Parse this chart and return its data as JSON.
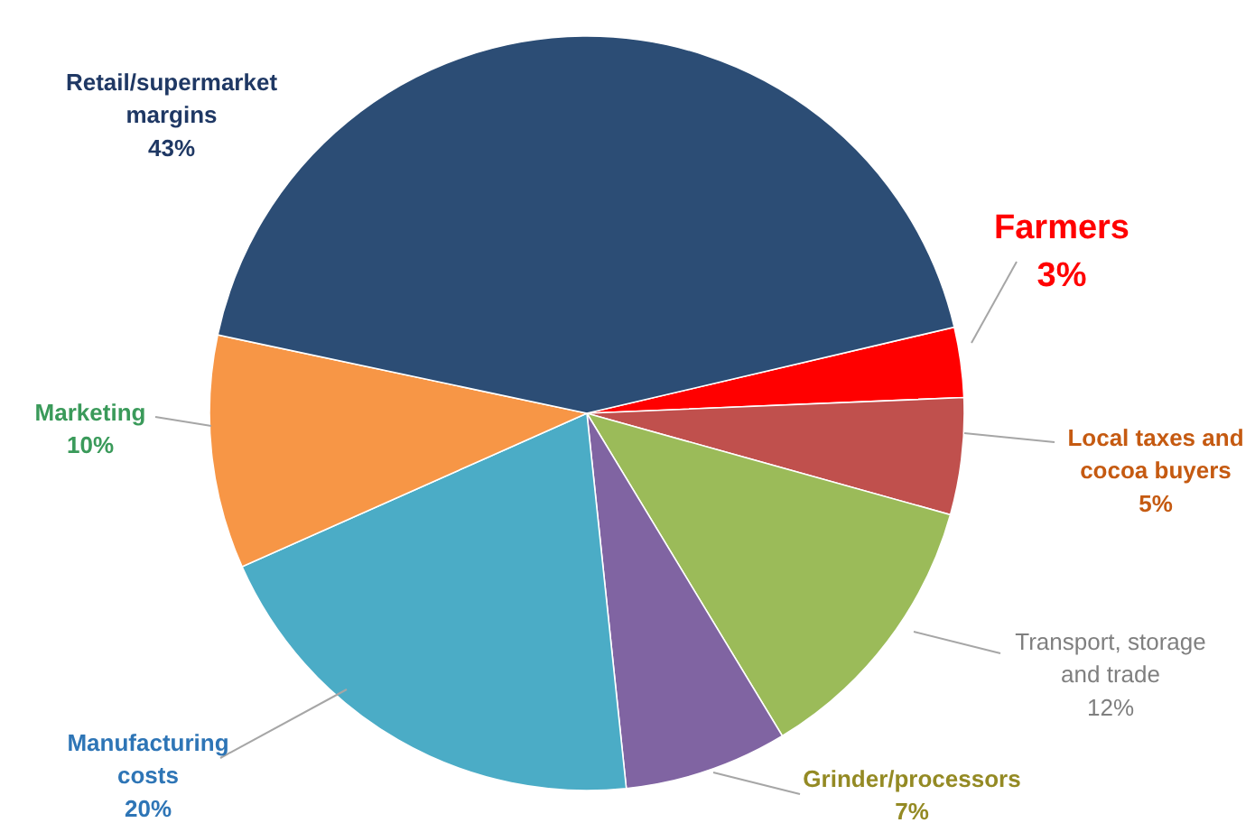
{
  "chart_data": {
    "type": "pie",
    "categories": [
      "Farmers",
      "Local taxes and cocoa buyers",
      "Transport, storage and trade",
      "Grinder/processors",
      "Manufacturing costs",
      "Marketing",
      "Retail/supermarket margins"
    ],
    "values": [
      3,
      5,
      12,
      7,
      20,
      10,
      43
    ],
    "value_labels": [
      "3%",
      "5%",
      "12%",
      "7%",
      "20%",
      "10%",
      "43%"
    ],
    "colors": [
      "#ff0000",
      "#c0504d",
      "#9bbb59",
      "#8064a2",
      "#4bacc6",
      "#f79646",
      "#2c4d75"
    ]
  }
}
